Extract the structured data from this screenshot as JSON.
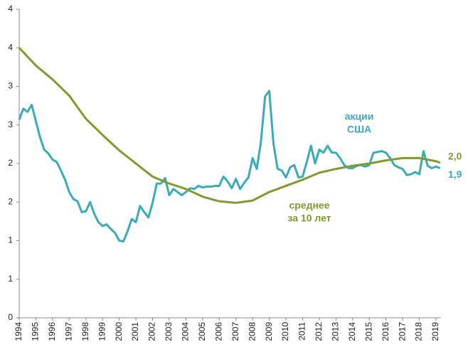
{
  "chart_data": {
    "type": "line",
    "xlim": [
      1994,
      2019.3
    ],
    "xticks": [
      1994,
      1995,
      1996,
      1997,
      1998,
      1999,
      2000,
      2001,
      2002,
      2003,
      2004,
      2005,
      2006,
      2007,
      2008,
      2009,
      2010,
      2011,
      2012,
      2013,
      2014,
      2015,
      2016,
      2017,
      2018,
      2019
    ],
    "ylim": [
      0,
      4
    ],
    "yticks": [
      0,
      {
        "value": 0.5,
        "label": "1"
      },
      1,
      {
        "value": 1.5,
        "label": "2"
      },
      2,
      {
        "value": 2.5,
        "label": "3"
      },
      3,
      {
        "value": 3.5,
        "label": "4"
      },
      4
    ],
    "series": [
      {
        "name": "акции США",
        "color": "#3aacb8",
        "x": [
          1994,
          1994.25,
          1994.5,
          1994.75,
          1995,
          1995.25,
          1995.5,
          1995.75,
          1996,
          1996.25,
          1996.5,
          1996.75,
          1997,
          1997.25,
          1997.5,
          1997.75,
          1998,
          1998.25,
          1998.5,
          1998.75,
          1999,
          1999.25,
          1999.5,
          1999.75,
          2000,
          2000.25,
          2000.5,
          2000.75,
          2001,
          2001.25,
          2001.5,
          2001.75,
          2002,
          2002.25,
          2002.5,
          2002.75,
          2003,
          2003.25,
          2003.5,
          2003.75,
          2004,
          2004.25,
          2004.5,
          2004.75,
          2005,
          2005.25,
          2005.5,
          2005.75,
          2006,
          2006.25,
          2006.5,
          2006.75,
          2007,
          2007.25,
          2007.5,
          2007.75,
          2008,
          2008.25,
          2008.5,
          2008.75,
          2009,
          2009.25,
          2009.5,
          2009.75,
          2010,
          2010.25,
          2010.5,
          2010.75,
          2011,
          2011.25,
          2011.5,
          2011.75,
          2012,
          2012.25,
          2012.5,
          2012.75,
          2013,
          2013.25,
          2013.5,
          2013.75,
          2014,
          2014.25,
          2014.5,
          2014.75,
          2015,
          2015.25,
          2015.5,
          2015.75,
          2016,
          2016.25,
          2016.5,
          2016.75,
          2017,
          2017.25,
          2017.5,
          2017.75,
          2018,
          2018.25,
          2018.5,
          2018.75,
          2019,
          2019.25
        ],
        "values": [
          2.57,
          2.71,
          2.67,
          2.76,
          2.55,
          2.34,
          2.18,
          2.13,
          2.05,
          2.02,
          1.91,
          1.79,
          1.63,
          1.54,
          1.51,
          1.37,
          1.38,
          1.5,
          1.35,
          1.24,
          1.19,
          1.21,
          1.15,
          1.1,
          1.0,
          0.99,
          1.12,
          1.28,
          1.24,
          1.45,
          1.37,
          1.3,
          1.49,
          1.74,
          1.74,
          1.81,
          1.59,
          1.67,
          1.63,
          1.59,
          1.63,
          1.68,
          1.67,
          1.71,
          1.69,
          1.7,
          1.7,
          1.71,
          1.71,
          1.83,
          1.77,
          1.68,
          1.8,
          1.67,
          1.75,
          1.82,
          2.07,
          1.93,
          2.28,
          2.87,
          2.94,
          2.26,
          1.93,
          1.91,
          1.82,
          1.95,
          1.98,
          1.82,
          1.83,
          2.02,
          2.23,
          2.0,
          2.18,
          2.14,
          2.23,
          2.14,
          2.14,
          2.07,
          1.98,
          1.94,
          1.94,
          1.97,
          1.98,
          1.96,
          1.98,
          2.14,
          2.15,
          2.16,
          2.14,
          2.07,
          1.98,
          1.95,
          1.93,
          1.85,
          1.86,
          1.89,
          1.86,
          2.16,
          1.97,
          1.94,
          1.96,
          1.94
        ],
        "end_label": "1,9"
      },
      {
        "name": "среднее за 10 лет",
        "color": "#7f9a2f",
        "x": [
          1994,
          1995,
          1996,
          1997,
          1998,
          1999,
          2000,
          2001,
          2002,
          2003,
          2004,
          2005,
          2006,
          2007,
          2008,
          2009,
          2010,
          2011,
          2012,
          2013,
          2014,
          2015,
          2016,
          2017,
          2018,
          2019,
          2019.25
        ],
        "values": [
          3.5,
          3.27,
          3.09,
          2.88,
          2.58,
          2.37,
          2.17,
          2.0,
          1.83,
          1.74,
          1.67,
          1.57,
          1.51,
          1.49,
          1.52,
          1.63,
          1.71,
          1.79,
          1.88,
          1.93,
          1.97,
          2.0,
          2.04,
          2.07,
          2.07,
          2.03,
          2.01
        ],
        "end_label": "2,0"
      }
    ],
    "annotations": [
      [
        "акции",
        "США"
      ],
      [
        "среднее",
        "за 10 лет"
      ]
    ]
  }
}
